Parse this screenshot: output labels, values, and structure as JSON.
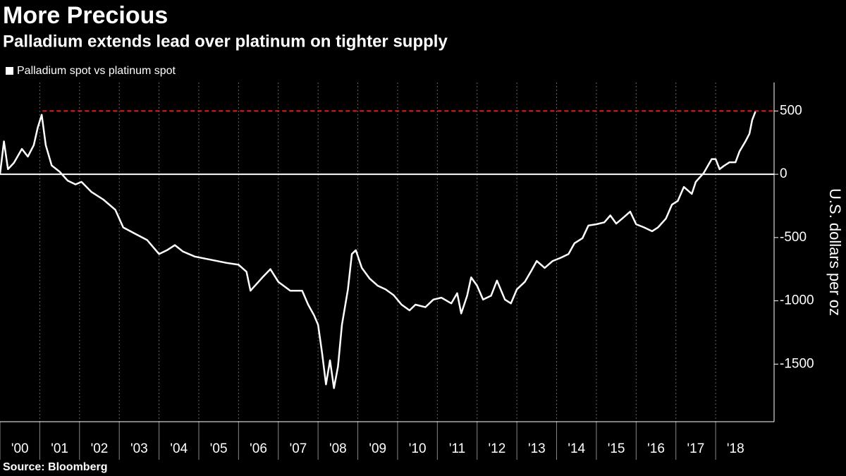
{
  "chart_data": {
    "type": "line",
    "title": "More Precious",
    "subtitle": "Palladium extends lead over platinum on tighter supply",
    "y_label": "U.S. dollars per oz",
    "source": "Source: Bloomberg",
    "series": [
      {
        "name": "Palladium spot vs platinum spot",
        "color": "#ffffff",
        "x": [
          2000.0,
          2000.1,
          2000.2,
          2000.35,
          2000.55,
          2000.7,
          2000.85,
          2000.95,
          2001.05,
          2001.15,
          2001.3,
          2001.5,
          2001.7,
          2001.9,
          2002.05,
          2002.3,
          2002.6,
          2002.9,
          2003.1,
          2003.4,
          2003.7,
          2004.0,
          2004.2,
          2004.4,
          2004.6,
          2004.9,
          2005.3,
          2005.7,
          2006.0,
          2006.2,
          2006.3,
          2006.5,
          2006.6,
          2006.8,
          2007.0,
          2007.3,
          2007.6,
          2007.75,
          2007.9,
          2008.0,
          2008.1,
          2008.2,
          2008.3,
          2008.4,
          2008.5,
          2008.6,
          2008.75,
          2008.85,
          2008.95,
          2009.1,
          2009.3,
          2009.5,
          2009.7,
          2009.9,
          2010.1,
          2010.3,
          2010.45,
          2010.7,
          2010.9,
          2011.1,
          2011.35,
          2011.5,
          2011.6,
          2011.75,
          2011.85,
          2012.0,
          2012.15,
          2012.35,
          2012.5,
          2012.7,
          2012.85,
          2013.0,
          2013.2,
          2013.35,
          2013.5,
          2013.7,
          2013.9,
          2014.1,
          2014.3,
          2014.45,
          2014.65,
          2014.8,
          2015.0,
          2015.2,
          2015.35,
          2015.5,
          2015.65,
          2015.85,
          2016.0,
          2016.2,
          2016.4,
          2016.55,
          2016.75,
          2016.9,
          2017.05,
          2017.2,
          2017.4,
          2017.5,
          2017.7,
          2017.9,
          2018.0,
          2018.1,
          2018.2,
          2018.35,
          2018.5,
          2018.6,
          2018.75,
          2018.85,
          2018.92,
          2019.0
        ],
        "values": [
          0,
          260,
          40,
          90,
          200,
          140,
          230,
          370,
          470,
          230,
          70,
          20,
          -50,
          -80,
          -60,
          -140,
          -200,
          -280,
          -420,
          -470,
          -520,
          -630,
          -600,
          -560,
          -610,
          -650,
          -675,
          -700,
          -715,
          -770,
          -920,
          -850,
          -815,
          -750,
          -850,
          -920,
          -920,
          -1030,
          -1115,
          -1190,
          -1410,
          -1660,
          -1470,
          -1690,
          -1520,
          -1190,
          -910,
          -630,
          -600,
          -740,
          -825,
          -880,
          -910,
          -955,
          -1030,
          -1075,
          -1030,
          -1050,
          -990,
          -975,
          -1020,
          -940,
          -1100,
          -960,
          -815,
          -880,
          -990,
          -960,
          -840,
          -990,
          -1020,
          -910,
          -850,
          -770,
          -685,
          -740,
          -685,
          -660,
          -630,
          -545,
          -505,
          -405,
          -395,
          -380,
          -325,
          -390,
          -350,
          -295,
          -395,
          -420,
          -450,
          -420,
          -350,
          -240,
          -210,
          -100,
          -155,
          -60,
          10,
          120,
          120,
          40,
          65,
          95,
          95,
          180,
          260,
          320,
          430,
          495
        ]
      }
    ],
    "reference_line": {
      "value": 500,
      "x": [
        2001.07,
        2019.47
      ],
      "color": "#e0201b"
    },
    "zero_line": true,
    "xlim": [
      2000,
      2019.47
    ],
    "xticks": [
      {
        "value": 2000,
        "label": "'00"
      },
      {
        "value": 2001,
        "label": "'01"
      },
      {
        "value": 2002,
        "label": "'02"
      },
      {
        "value": 2003,
        "label": "'03"
      },
      {
        "value": 2004,
        "label": "'04"
      },
      {
        "value": 2005,
        "label": "'05"
      },
      {
        "value": 2006,
        "label": "'06"
      },
      {
        "value": 2007,
        "label": "'07"
      },
      {
        "value": 2008,
        "label": "'08"
      },
      {
        "value": 2009,
        "label": "'09"
      },
      {
        "value": 2010,
        "label": "'10"
      },
      {
        "value": 2011,
        "label": "'11"
      },
      {
        "value": 2012,
        "label": "'12"
      },
      {
        "value": 2013,
        "label": "'13"
      },
      {
        "value": 2014,
        "label": "'14"
      },
      {
        "value": 2015,
        "label": "'15"
      },
      {
        "value": 2016,
        "label": "'16"
      },
      {
        "value": 2017,
        "label": "'17"
      },
      {
        "value": 2018,
        "label": "'18"
      }
    ],
    "ylim": [
      -1955,
      725
    ],
    "yticks": [
      -1500,
      -1000,
      -500,
      0,
      500
    ],
    "grid": true
  }
}
